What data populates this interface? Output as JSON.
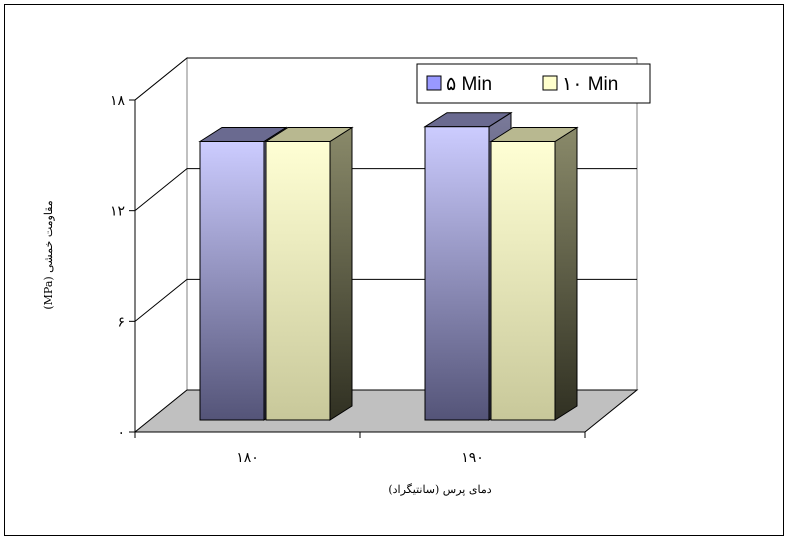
{
  "chart_data": {
    "type": "bar",
    "categories": [
      "۱۸۰",
      "۱۹۰"
    ],
    "series": [
      {
        "name": "۵ Min",
        "values": [
          15.1,
          15.9
        ],
        "color": "#9999ff"
      },
      {
        "name": "۱۰ Min",
        "values": [
          15.1,
          15.1
        ],
        "color": "#ffffcc"
      }
    ],
    "title": "",
    "xlabel": "دمای پرس (سانتیگراد)",
    "ylabel": "مقاومت خمشی (MPa)",
    "ylim": [
      0,
      18
    ],
    "yticks": [
      0,
      6,
      12,
      18
    ],
    "ytick_labels": [
      "۰",
      "۶",
      "۱۲",
      "۱۸"
    ],
    "gridlines": true,
    "legend_position": "top-right",
    "floor_color": "#c0c0c0"
  }
}
